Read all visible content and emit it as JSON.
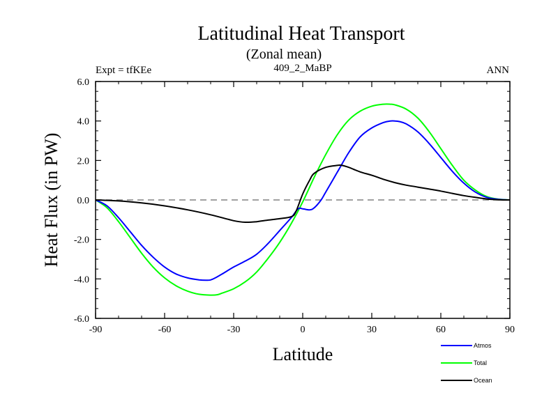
{
  "chart_data": {
    "type": "line",
    "title": "Latitudinal Heat Transport",
    "subtitle": "(Zonal mean)",
    "left_label": "Expt = tfKEe",
    "center_label": "409_2_MaBP",
    "right_label": "ANN",
    "xlabel": "Latitude",
    "ylabel": "Heat Flux (in PW)",
    "xlim": [
      -90,
      90
    ],
    "ylim": [
      -6,
      6
    ],
    "x_ticks": [
      -90,
      -60,
      -30,
      0,
      30,
      60,
      90
    ],
    "x_tick_labels": [
      "-90",
      "-60",
      "-30",
      "0",
      "30",
      "60",
      "90"
    ],
    "y_ticks": [
      -6,
      -4,
      -2,
      0,
      2,
      4,
      6
    ],
    "y_tick_labels": [
      "-6.0",
      "-4.0",
      "-2.0",
      "0.0",
      "2.0",
      "4.0",
      "6.0"
    ],
    "zero_line": true,
    "legend_position": "bottom-right",
    "series": [
      {
        "name": "Atmos",
        "color": "#0000ff",
        "x": [
          -90,
          -85,
          -80,
          -75,
          -70,
          -65,
          -60,
          -55,
          -50,
          -45,
          -42,
          -40,
          -38,
          -35,
          -30,
          -25,
          -20,
          -15,
          -10,
          -5,
          -2,
          0,
          3,
          5,
          8,
          10,
          15,
          20,
          25,
          30,
          35,
          38,
          40,
          42,
          45,
          50,
          55,
          60,
          65,
          70,
          75,
          80,
          85,
          90
        ],
        "y": [
          0,
          -0.3,
          -0.9,
          -1.6,
          -2.3,
          -2.9,
          -3.4,
          -3.75,
          -3.95,
          -4.05,
          -4.07,
          -4.05,
          -3.95,
          -3.75,
          -3.4,
          -3.1,
          -2.75,
          -2.2,
          -1.55,
          -0.9,
          -0.45,
          -0.45,
          -0.5,
          -0.4,
          0,
          0.4,
          1.4,
          2.4,
          3.2,
          3.65,
          3.92,
          4.0,
          4.0,
          3.97,
          3.85,
          3.45,
          2.85,
          2.15,
          1.45,
          0.85,
          0.4,
          0.13,
          0.03,
          0
        ]
      },
      {
        "name": "Total",
        "color": "#00ff00",
        "x": [
          -90,
          -85,
          -80,
          -75,
          -70,
          -65,
          -60,
          -55,
          -50,
          -45,
          -40,
          -37,
          -35,
          -30,
          -25,
          -20,
          -15,
          -10,
          -5,
          0,
          5,
          10,
          15,
          20,
          25,
          30,
          35,
          38,
          40,
          45,
          50,
          55,
          60,
          65,
          70,
          75,
          80,
          85,
          90
        ],
        "y": [
          0,
          -0.4,
          -1.1,
          -1.9,
          -2.7,
          -3.4,
          -3.95,
          -4.35,
          -4.62,
          -4.78,
          -4.82,
          -4.8,
          -4.72,
          -4.5,
          -4.15,
          -3.65,
          -2.95,
          -2.15,
          -1.2,
          -0.1,
          1.15,
          2.3,
          3.3,
          4.05,
          4.5,
          4.75,
          4.85,
          4.85,
          4.82,
          4.6,
          4.15,
          3.45,
          2.6,
          1.75,
          1.0,
          0.5,
          0.17,
          0.04,
          0
        ]
      },
      {
        "name": "Ocean",
        "color": "#000000",
        "x": [
          -90,
          -80,
          -70,
          -60,
          -50,
          -40,
          -30,
          -25,
          -20,
          -15,
          -10,
          -5,
          -3,
          0,
          3,
          5,
          10,
          15,
          17,
          20,
          25,
          30,
          35,
          40,
          45,
          50,
          55,
          60,
          65,
          70,
          75,
          80,
          85,
          90
        ],
        "y": [
          0,
          -0.05,
          -0.15,
          -0.3,
          -0.5,
          -0.75,
          -1.05,
          -1.13,
          -1.1,
          -1.02,
          -0.95,
          -0.85,
          -0.6,
          0.3,
          1.0,
          1.35,
          1.65,
          1.75,
          1.75,
          1.65,
          1.42,
          1.25,
          1.05,
          0.88,
          0.75,
          0.65,
          0.55,
          0.45,
          0.33,
          0.22,
          0.13,
          0.05,
          0.01,
          0
        ]
      }
    ]
  }
}
